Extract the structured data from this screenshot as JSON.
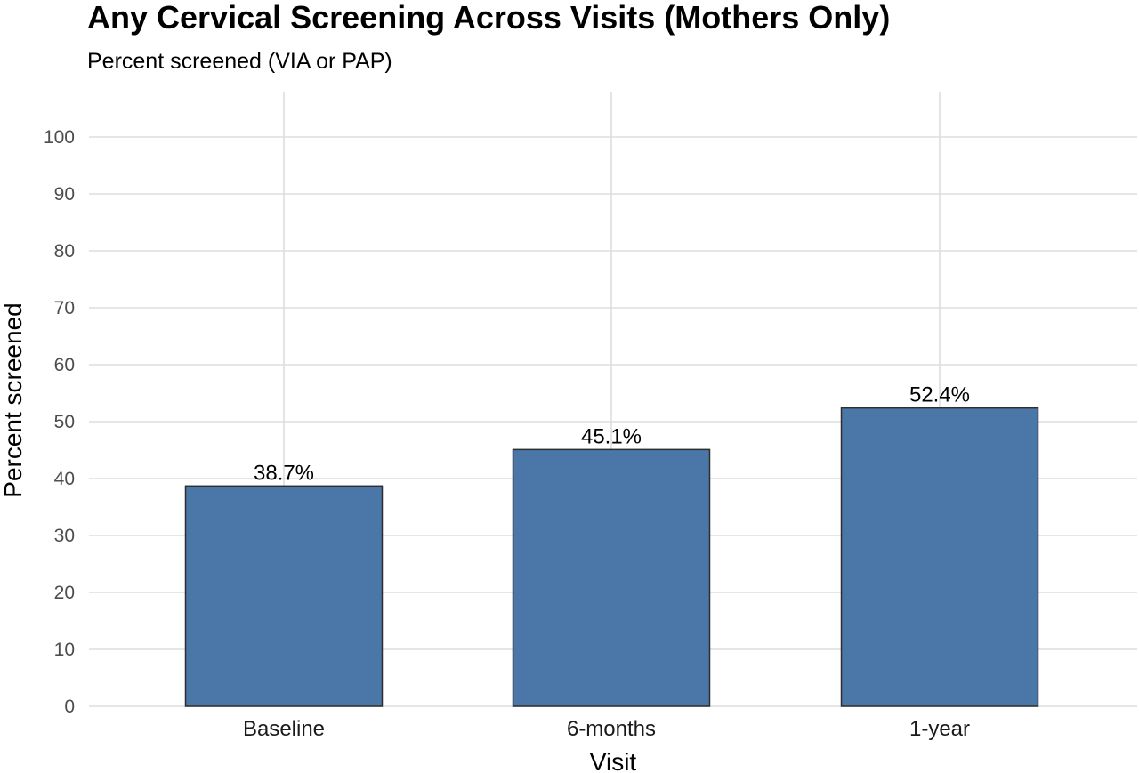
{
  "chart_data": {
    "type": "bar",
    "title": "Any Cervical Screening Across Visits (Mothers Only)",
    "subtitle": "Percent screened (VIA or PAP)",
    "xlabel": "Visit",
    "ylabel": "Percent screened",
    "categories": [
      "Baseline",
      "6-months",
      "1-year"
    ],
    "values": [
      38.7,
      45.1,
      52.4
    ],
    "value_labels": [
      "38.7%",
      "45.1%",
      "52.4%"
    ],
    "ylim": [
      0,
      100
    ],
    "yticks": [
      0,
      10,
      20,
      30,
      40,
      50,
      60,
      70,
      80,
      90,
      100
    ],
    "grid": true,
    "legend": "none",
    "bar_color": "#4a76a8",
    "bar_edge_color": "#2e2e2e",
    "grid_color": "#e6e6e6"
  }
}
